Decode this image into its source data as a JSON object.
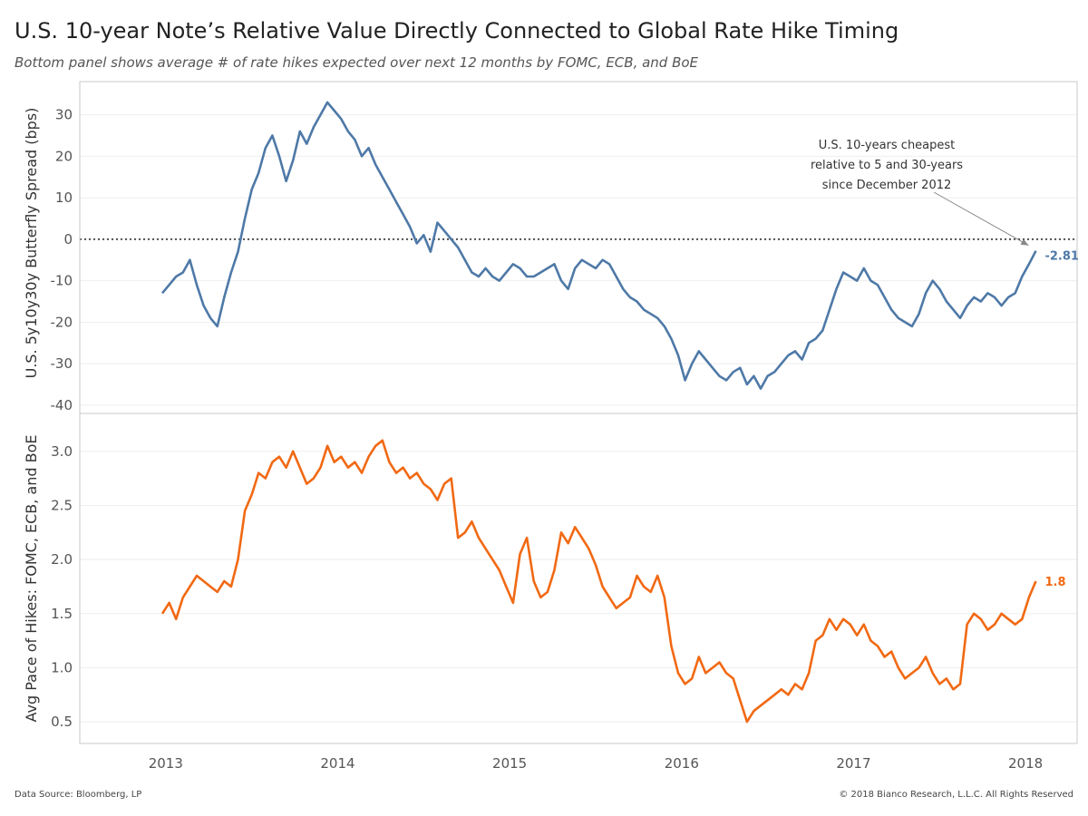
{
  "title": "U.S. 10-year Note’s Relative Value Directly Connected to Global Rate Hike Timing",
  "subtitle": "Bottom panel shows average # of rate hikes expected over next 12 months by FOMC, ECB, and BoE",
  "footer": {
    "source": "Data Source: Bloomberg, LP",
    "copyright": "© 2018 Bianco Research, L.L.C. All Rights Reserved"
  },
  "chart_data": [
    {
      "type": "line",
      "ylabel": "U.S. 5y10y30y Butterfly Spread (bps)",
      "ylim": [
        -42,
        38
      ],
      "yticks": [
        30,
        20,
        10,
        0,
        -10,
        -20,
        -30,
        -40
      ],
      "reference_line": 0,
      "color": "#4e79a7",
      "end_label": "-2.81",
      "annotation": {
        "lines": [
          "U.S. 10-years cheapest",
          "relative to 5 and 30-years",
          "since December 2012"
        ],
        "points_to": [
          2018.06,
          -2.81
        ]
      },
      "series": [
        {
          "x": [
            2012.98,
            2013.02,
            2013.06,
            2013.1,
            2013.14,
            2013.18,
            2013.22,
            2013.26,
            2013.3,
            2013.34,
            2013.38,
            2013.42,
            2013.46,
            2013.5,
            2013.54,
            2013.58,
            2013.62,
            2013.66,
            2013.7,
            2013.74,
            2013.78,
            2013.82,
            2013.86,
            2013.9,
            2013.94,
            2013.98,
            2014.02,
            2014.06,
            2014.1,
            2014.14,
            2014.18,
            2014.22,
            2014.26,
            2014.3,
            2014.34,
            2014.38,
            2014.42,
            2014.46,
            2014.5,
            2014.54,
            2014.58,
            2014.62,
            2014.66,
            2014.7,
            2014.74,
            2014.78,
            2014.82,
            2014.86,
            2014.9,
            2014.94,
            2014.98,
            2015.02,
            2015.06,
            2015.1,
            2015.14,
            2015.18,
            2015.22,
            2015.26,
            2015.3,
            2015.34,
            2015.38,
            2015.42,
            2015.46,
            2015.5,
            2015.54,
            2015.58,
            2015.62,
            2015.66,
            2015.7,
            2015.74,
            2015.78,
            2015.82,
            2015.86,
            2015.9,
            2015.94,
            2015.98,
            2016.02,
            2016.06,
            2016.1,
            2016.14,
            2016.18,
            2016.22,
            2016.26,
            2016.3,
            2016.34,
            2016.38,
            2016.42,
            2016.46,
            2016.5,
            2016.54,
            2016.58,
            2016.62,
            2016.66,
            2016.7,
            2016.74,
            2016.78,
            2016.82,
            2016.86,
            2016.9,
            2016.94,
            2016.98,
            2017.02,
            2017.06,
            2017.1,
            2017.14,
            2017.18,
            2017.22,
            2017.26,
            2017.3,
            2017.34,
            2017.38,
            2017.42,
            2017.46,
            2017.5,
            2017.54,
            2017.58,
            2017.62,
            2017.66,
            2017.7,
            2017.74,
            2017.78,
            2017.82,
            2017.86,
            2017.9,
            2017.94,
            2017.98,
            2018.02,
            2018.06
          ],
          "values": [
            -13,
            -11,
            -9,
            -8,
            -5,
            -11,
            -16,
            -19,
            -21,
            -14,
            -8,
            -3,
            5,
            12,
            16,
            22,
            25,
            20,
            14,
            19,
            26,
            23,
            27,
            30,
            33,
            31,
            29,
            26,
            24,
            20,
            22,
            18,
            15,
            12,
            9,
            6,
            3,
            -1,
            1,
            -3,
            4,
            2,
            0,
            -2,
            -5,
            -8,
            -9,
            -7,
            -9,
            -10,
            -8,
            -6,
            -7,
            -9,
            -9,
            -8,
            -7,
            -6,
            -10,
            -12,
            -7,
            -5,
            -6,
            -7,
            -5,
            -6,
            -9,
            -12,
            -14,
            -15,
            -17,
            -18,
            -19,
            -21,
            -24,
            -28,
            -34,
            -30,
            -27,
            -29,
            -31,
            -33,
            -34,
            -32,
            -31,
            -35,
            -33,
            -36,
            -33,
            -32,
            -30,
            -28,
            -27,
            -29,
            -25,
            -24,
            -22,
            -17,
            -12,
            -8,
            -9,
            -10,
            -7,
            -10,
            -11,
            -14,
            -17,
            -19,
            -20,
            -21,
            -18,
            -13,
            -10,
            -12,
            -15,
            -17,
            -19,
            -16,
            -14,
            -15,
            -13,
            -14,
            -16,
            -14,
            -13,
            -9,
            -6,
            -2.81
          ]
        }
      ]
    },
    {
      "type": "line",
      "ylabel": "Avg Pace of Hikes: FOMC, ECB, and BoE",
      "ylim": [
        0.3,
        3.35
      ],
      "yticks": [
        3.0,
        2.5,
        2.0,
        1.5,
        1.0,
        0.5
      ],
      "color": "#f16913",
      "end_label": "1.8",
      "x_ticks": [
        "2013",
        "2014",
        "2015",
        "2016",
        "2017",
        "2018"
      ],
      "series": [
        {
          "x": [
            2012.98,
            2013.02,
            2013.06,
            2013.1,
            2013.14,
            2013.18,
            2013.22,
            2013.26,
            2013.3,
            2013.34,
            2013.38,
            2013.42,
            2013.46,
            2013.5,
            2013.54,
            2013.58,
            2013.62,
            2013.66,
            2013.7,
            2013.74,
            2013.78,
            2013.82,
            2013.86,
            2013.9,
            2013.94,
            2013.98,
            2014.02,
            2014.06,
            2014.1,
            2014.14,
            2014.18,
            2014.22,
            2014.26,
            2014.3,
            2014.34,
            2014.38,
            2014.42,
            2014.46,
            2014.5,
            2014.54,
            2014.58,
            2014.62,
            2014.66,
            2014.7,
            2014.74,
            2014.78,
            2014.82,
            2014.86,
            2014.9,
            2014.94,
            2014.98,
            2015.02,
            2015.06,
            2015.1,
            2015.14,
            2015.18,
            2015.22,
            2015.26,
            2015.3,
            2015.34,
            2015.38,
            2015.42,
            2015.46,
            2015.5,
            2015.54,
            2015.58,
            2015.62,
            2015.66,
            2015.7,
            2015.74,
            2015.78,
            2015.82,
            2015.86,
            2015.9,
            2015.94,
            2015.98,
            2016.02,
            2016.06,
            2016.1,
            2016.14,
            2016.18,
            2016.22,
            2016.26,
            2016.3,
            2016.34,
            2016.38,
            2016.42,
            2016.46,
            2016.5,
            2016.54,
            2016.58,
            2016.62,
            2016.66,
            2016.7,
            2016.74,
            2016.78,
            2016.82,
            2016.86,
            2016.9,
            2016.94,
            2016.98,
            2017.02,
            2017.06,
            2017.1,
            2017.14,
            2017.18,
            2017.22,
            2017.26,
            2017.3,
            2017.34,
            2017.38,
            2017.42,
            2017.46,
            2017.5,
            2017.54,
            2017.58,
            2017.62,
            2017.66,
            2017.7,
            2017.74,
            2017.78,
            2017.82,
            2017.86,
            2017.9,
            2017.94,
            2017.98,
            2018.02,
            2018.06
          ],
          "values": [
            1.5,
            1.6,
            1.45,
            1.65,
            1.75,
            1.85,
            1.8,
            1.75,
            1.7,
            1.8,
            1.75,
            2.0,
            2.45,
            2.6,
            2.8,
            2.75,
            2.9,
            2.95,
            2.85,
            3.0,
            2.85,
            2.7,
            2.75,
            2.85,
            3.05,
            2.9,
            2.95,
            2.85,
            2.9,
            2.8,
            2.95,
            3.05,
            3.1,
            2.9,
            2.8,
            2.85,
            2.75,
            2.8,
            2.7,
            2.65,
            2.55,
            2.7,
            2.75,
            2.2,
            2.25,
            2.35,
            2.2,
            2.1,
            2.0,
            1.9,
            1.75,
            1.6,
            2.05,
            2.2,
            1.8,
            1.65,
            1.7,
            1.9,
            2.25,
            2.15,
            2.3,
            2.2,
            2.1,
            1.95,
            1.75,
            1.65,
            1.55,
            1.6,
            1.65,
            1.85,
            1.75,
            1.7,
            1.85,
            1.65,
            1.2,
            0.95,
            0.85,
            0.9,
            1.1,
            0.95,
            1.0,
            1.05,
            0.95,
            0.9,
            0.7,
            0.5,
            0.6,
            0.65,
            0.7,
            0.75,
            0.8,
            0.75,
            0.85,
            0.8,
            0.95,
            1.25,
            1.3,
            1.45,
            1.35,
            1.45,
            1.4,
            1.3,
            1.4,
            1.25,
            1.2,
            1.1,
            1.15,
            1.0,
            0.9,
            0.95,
            1.0,
            1.1,
            0.95,
            0.85,
            0.9,
            0.8,
            0.85,
            1.4,
            1.5,
            1.45,
            1.35,
            1.4,
            1.5,
            1.45,
            1.4,
            1.45,
            1.65,
            1.8
          ]
        }
      ]
    }
  ]
}
